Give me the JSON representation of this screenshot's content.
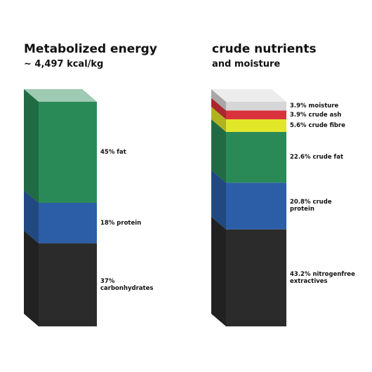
{
  "chart_data": [
    {
      "type": "bar",
      "title": "Metabolized energy",
      "subtitle": "~ 4,497 kcal/kg",
      "values": [
        37,
        18,
        45
      ],
      "value_labels": [
        "37% carbonhydrates",
        "18% protein",
        "45% fat"
      ],
      "colors": [
        "#2b2b2b",
        "#2b5ea6",
        "#2a8a57"
      ]
    },
    {
      "type": "bar",
      "title": "crude nutrients",
      "subtitle": "and moisture",
      "values": [
        43.2,
        20.8,
        22.6,
        5.6,
        3.9,
        3.9
      ],
      "value_labels": [
        "43.2% nitrogenfree extractives",
        "20.8% crude protein",
        "22.6% crude fat",
        "5.6% crude fibre",
        "3.9% crude ash",
        "3.9% moisture"
      ],
      "colors": [
        "#2b2b2b",
        "#2b5ea6",
        "#2a8a57",
        "#e2e628",
        "#d9323c",
        "#d6d6d8"
      ]
    }
  ]
}
